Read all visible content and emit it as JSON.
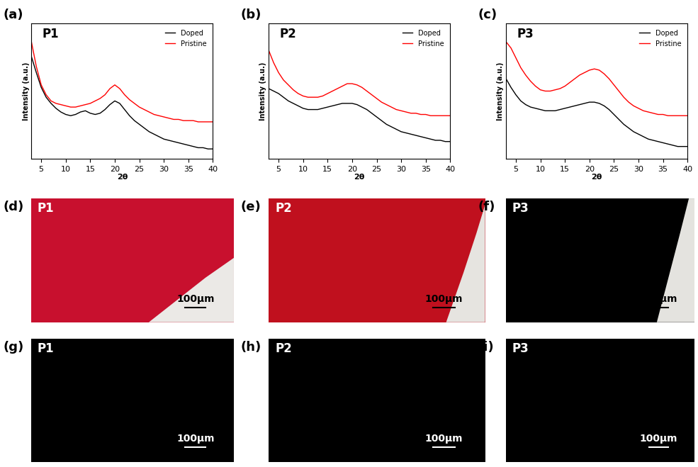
{
  "chart_data": [
    {
      "type": "line",
      "panel": "(a)",
      "title": "P1",
      "xlabel": "2θ",
      "ylabel": "Intensity (a.u.)",
      "x": [
        3,
        4,
        5,
        6,
        7,
        8,
        9,
        10,
        11,
        12,
        13,
        14,
        15,
        16,
        17,
        18,
        19,
        20,
        21,
        22,
        23,
        24,
        25,
        26,
        27,
        28,
        29,
        30,
        31,
        32,
        33,
        34,
        35,
        36,
        37,
        38,
        39,
        40
      ],
      "series": [
        {
          "name": "Doped",
          "color": "#000000",
          "values": [
            83,
            70,
            58,
            50,
            45,
            41,
            38,
            36,
            35,
            36,
            38,
            39,
            37,
            36,
            37,
            40,
            44,
            47,
            45,
            40,
            35,
            31,
            28,
            25,
            22,
            20,
            18,
            16,
            15,
            14,
            13,
            12,
            11,
            10,
            9,
            9,
            8,
            8
          ]
        },
        {
          "name": "Pristine",
          "color": "#ff0000",
          "values": [
            95,
            75,
            60,
            52,
            47,
            45,
            44,
            43,
            42,
            42,
            43,
            44,
            45,
            47,
            49,
            52,
            57,
            60,
            57,
            52,
            48,
            45,
            42,
            40,
            38,
            36,
            35,
            34,
            33,
            32,
            32,
            31,
            31,
            31,
            30,
            30,
            30,
            30
          ]
        }
      ],
      "xlim": [
        3,
        40
      ],
      "ylim": [
        0,
        110
      ],
      "xticks": [
        5,
        10,
        15,
        20,
        25,
        30,
        35,
        40
      ],
      "tick_labels": "x",
      "legend": "upper right"
    },
    {
      "type": "line",
      "panel": "(b)",
      "title": "P2",
      "xlabel": "2θ",
      "ylabel": "Intensity (a.u.)",
      "x": [
        3,
        4,
        5,
        6,
        7,
        8,
        9,
        10,
        11,
        12,
        13,
        14,
        15,
        16,
        17,
        18,
        19,
        20,
        21,
        22,
        23,
        24,
        25,
        26,
        27,
        28,
        29,
        30,
        31,
        32,
        33,
        34,
        35,
        36,
        37,
        38,
        39,
        40
      ],
      "series": [
        {
          "name": "Doped",
          "color": "#000000",
          "values": [
            57,
            55,
            53,
            50,
            47,
            45,
            43,
            41,
            40,
            40,
            40,
            41,
            42,
            43,
            44,
            45,
            45,
            45,
            44,
            42,
            40,
            37,
            34,
            31,
            28,
            26,
            24,
            22,
            21,
            20,
            19,
            18,
            17,
            16,
            15,
            15,
            14,
            14
          ]
        },
        {
          "name": "Pristine",
          "color": "#ff0000",
          "values": [
            88,
            78,
            70,
            64,
            60,
            56,
            53,
            51,
            50,
            50,
            50,
            51,
            53,
            55,
            57,
            59,
            61,
            61,
            60,
            58,
            55,
            52,
            49,
            46,
            44,
            42,
            40,
            39,
            38,
            37,
            37,
            36,
            36,
            35,
            35,
            35,
            35,
            35
          ]
        }
      ],
      "xlim": [
        3,
        40
      ],
      "ylim": [
        0,
        110
      ],
      "xticks": [
        5,
        10,
        15,
        20,
        25,
        30,
        35,
        40
      ],
      "tick_labels": "x",
      "legend": "upper right"
    },
    {
      "type": "line",
      "panel": "(c)",
      "title": "P3",
      "xlabel": "2θ",
      "ylabel": "Intensity (a.u.)",
      "x": [
        3,
        4,
        5,
        6,
        7,
        8,
        9,
        10,
        11,
        12,
        13,
        14,
        15,
        16,
        17,
        18,
        19,
        20,
        21,
        22,
        23,
        24,
        25,
        26,
        27,
        28,
        29,
        30,
        31,
        32,
        33,
        34,
        35,
        36,
        37,
        38,
        39,
        40
      ],
      "series": [
        {
          "name": "Doped",
          "color": "#000000",
          "values": [
            65,
            58,
            52,
            47,
            44,
            42,
            41,
            40,
            39,
            39,
            39,
            40,
            41,
            42,
            43,
            44,
            45,
            46,
            46,
            45,
            43,
            40,
            36,
            32,
            28,
            25,
            22,
            20,
            18,
            16,
            15,
            14,
            13,
            12,
            11,
            10,
            10,
            10
          ]
        },
        {
          "name": "Pristine",
          "color": "#ff0000",
          "values": [
            95,
            90,
            82,
            74,
            68,
            63,
            59,
            56,
            55,
            55,
            56,
            57,
            59,
            62,
            65,
            68,
            70,
            72,
            73,
            72,
            69,
            65,
            60,
            55,
            50,
            46,
            43,
            41,
            39,
            38,
            37,
            36,
            36,
            35,
            35,
            35,
            35,
            35
          ]
        }
      ],
      "xlim": [
        3,
        40
      ],
      "ylim": [
        0,
        110
      ],
      "xticks": [
        5,
        10,
        15,
        20,
        25,
        30,
        35,
        40
      ],
      "tick_labels": "x",
      "legend": "upper right"
    }
  ],
  "images": [
    {
      "panel": "(d)",
      "sample": "P1",
      "scale_bar": "100µm",
      "film_color": "#c8102e",
      "substrate_color": "#ebe9e6",
      "scale_bar_color": "#000000",
      "sample_color": "#ffffff"
    },
    {
      "panel": "(e)",
      "sample": "P2",
      "scale_bar": "100µm",
      "film_color": "#c0101e",
      "substrate_color": "#e6e4e0",
      "scale_bar_color": "#000000",
      "sample_color": "#ffffff"
    },
    {
      "panel": "(f)",
      "sample": "P3",
      "scale_bar": "100µm",
      "film_color": "#000000",
      "substrate_color": "#e4e3df",
      "scale_bar_color": "#000000",
      "sample_color": "#ffffff"
    },
    {
      "panel": "(g)",
      "sample": "P1",
      "scale_bar": "100µm",
      "film_color": "#000000",
      "scale_bar_color": "#ffffff",
      "sample_color": "#ffffff"
    },
    {
      "panel": "(h)",
      "sample": "P2",
      "scale_bar": "100µm",
      "film_color": "#000000",
      "scale_bar_color": "#ffffff",
      "sample_color": "#ffffff"
    },
    {
      "panel": "(i)",
      "sample": "P3",
      "scale_bar": "100µm",
      "film_color": "#000000",
      "scale_bar_color": "#ffffff",
      "sample_color": "#ffffff"
    }
  ]
}
